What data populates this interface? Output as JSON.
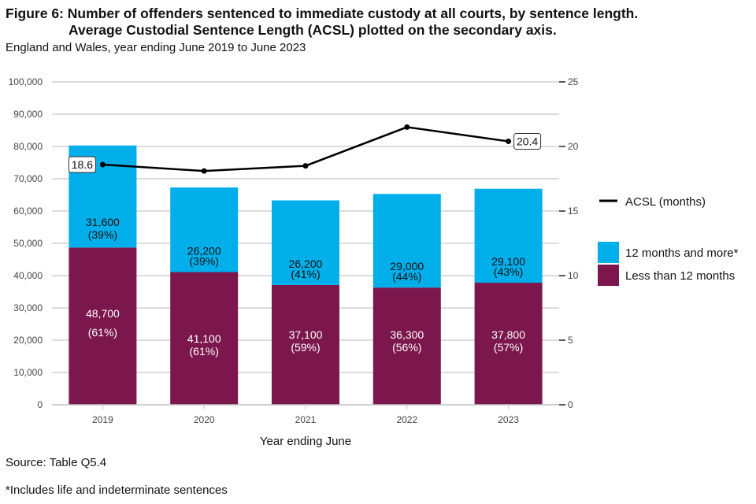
{
  "header": {
    "title_line1": "Figure 6: Number of offenders sentenced to immediate custody at all courts, by sentence length.",
    "title_line2": "Average Custodial Sentence Length (ACSL) plotted on the secondary axis.",
    "subtitle": "England and Wales, year ending June 2019 to June 2023"
  },
  "footer": {
    "source": "Source: Table Q5.4",
    "note": "*Includes life and indeterminate sentences"
  },
  "chart_data": {
    "type": "bar",
    "stacked": true,
    "title": "Number of offenders sentenced to immediate custody at all courts, by sentence length. Average Custodial Sentence Length (ACSL) plotted on the secondary axis.",
    "xlabel": "Year ending June",
    "ylabel": "",
    "y2label": "",
    "categories": [
      "2019",
      "2020",
      "2021",
      "2022",
      "2023"
    ],
    "ylim": [
      0,
      100000
    ],
    "y_ticks": [
      0,
      10000,
      20000,
      30000,
      40000,
      50000,
      60000,
      70000,
      80000,
      90000,
      100000
    ],
    "y_tick_labels": [
      "0",
      "10,000",
      "20,000",
      "30,000",
      "40,000",
      "50,000",
      "60,000",
      "70,000",
      "80,000",
      "90,000",
      "100,000"
    ],
    "y2lim": [
      0,
      25
    ],
    "y2_ticks": [
      0,
      5,
      10,
      15,
      20,
      25
    ],
    "y2_tick_labels": [
      "0",
      "5",
      "10",
      "15",
      "20",
      "25"
    ],
    "grid": true,
    "legend_position": "right",
    "series": [
      {
        "name": "Less than 12 months",
        "color": "#7b174c",
        "values": [
          48700,
          41100,
          37100,
          36300,
          37800
        ],
        "labels": [
          "48,700",
          "41,100",
          "37,100",
          "36,300",
          "37,800"
        ],
        "pct_labels": [
          "(61%)",
          "(61%)",
          "(59%)",
          "(56%)",
          "(57%)"
        ]
      },
      {
        "name": "12 months and more*",
        "color": "#00aeea",
        "values": [
          31600,
          26200,
          26200,
          29000,
          29100
        ],
        "labels": [
          "31,600",
          "26,200",
          "26,200",
          "29,000",
          "29,100"
        ],
        "pct_labels": [
          "(39%)",
          "(39%)",
          "(41%)",
          "(44%)",
          "(43%)"
        ]
      }
    ],
    "line_series": {
      "name": "ACSL (months)",
      "axis": "secondary",
      "color": "#000000",
      "values": [
        18.6,
        18.1,
        18.5,
        21.5,
        20.4
      ],
      "callouts": [
        {
          "index": 0,
          "text": "18.6",
          "side": "left"
        },
        {
          "index": 4,
          "text": "20.4",
          "side": "right"
        }
      ]
    },
    "legend": [
      {
        "type": "line",
        "label": "ACSL (months)",
        "color": "#000000"
      },
      {
        "type": "box",
        "label": "12 months and more*",
        "color": "#00aeea"
      },
      {
        "type": "box",
        "label": "Less than 12 months",
        "color": "#7b174c"
      }
    ]
  }
}
